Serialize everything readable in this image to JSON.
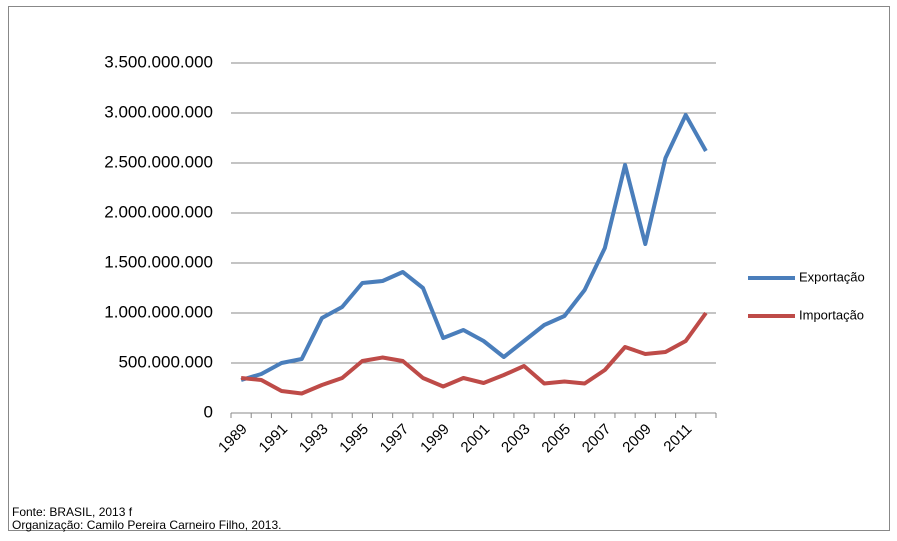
{
  "chart_data": {
    "type": "line",
    "categories": [
      "1989",
      null,
      "1991",
      null,
      "1993",
      null,
      "1995",
      null,
      "1997",
      null,
      "1999",
      null,
      "2001",
      null,
      "2003",
      null,
      "2005",
      null,
      "2007",
      null,
      "2009",
      null,
      "2011",
      null
    ],
    "series": [
      {
        "name": "Exportação",
        "color": "#4a7ebb",
        "values": [
          330000000,
          390000000,
          500000000,
          540000000,
          950000000,
          1060000000,
          1300000000,
          1320000000,
          1410000000,
          1250000000,
          750000000,
          830000000,
          720000000,
          560000000,
          720000000,
          880000000,
          970000000,
          1230000000,
          1650000000,
          2480000000,
          1690000000,
          2550000000,
          2980000000,
          2620000000
        ]
      },
      {
        "name": "Importação",
        "color": "#be4b48",
        "values": [
          350000000,
          330000000,
          220000000,
          195000000,
          280000000,
          350000000,
          520000000,
          555000000,
          520000000,
          350000000,
          265000000,
          350000000,
          300000000,
          380000000,
          470000000,
          295000000,
          315000000,
          295000000,
          430000000,
          660000000,
          590000000,
          610000000,
          720000000,
          1000000000
        ]
      }
    ],
    "ylim": [
      0,
      3500000000
    ],
    "yticks": [
      0,
      {
        "value": 500000000,
        "label": "500.000.000"
      },
      {
        "value": 1000000000,
        "label": "1.000.000.000"
      },
      {
        "value": 1500000000,
        "label": "1.500.000.000"
      },
      {
        "value": 2000000000,
        "label": "2.000.000.000"
      },
      {
        "value": 2500000000,
        "label": "2.500.000.000"
      },
      {
        "value": 3000000000,
        "label": "3.000.000.000"
      },
      {
        "value": 3500000000,
        "label": "3.500.000.000"
      }
    ],
    "grid": true,
    "legend": "right",
    "notes": [
      "Fonte: BRASIL, 2013 f",
      "Organização: Camilo Pereira Carneiro Filho, 2013."
    ]
  }
}
